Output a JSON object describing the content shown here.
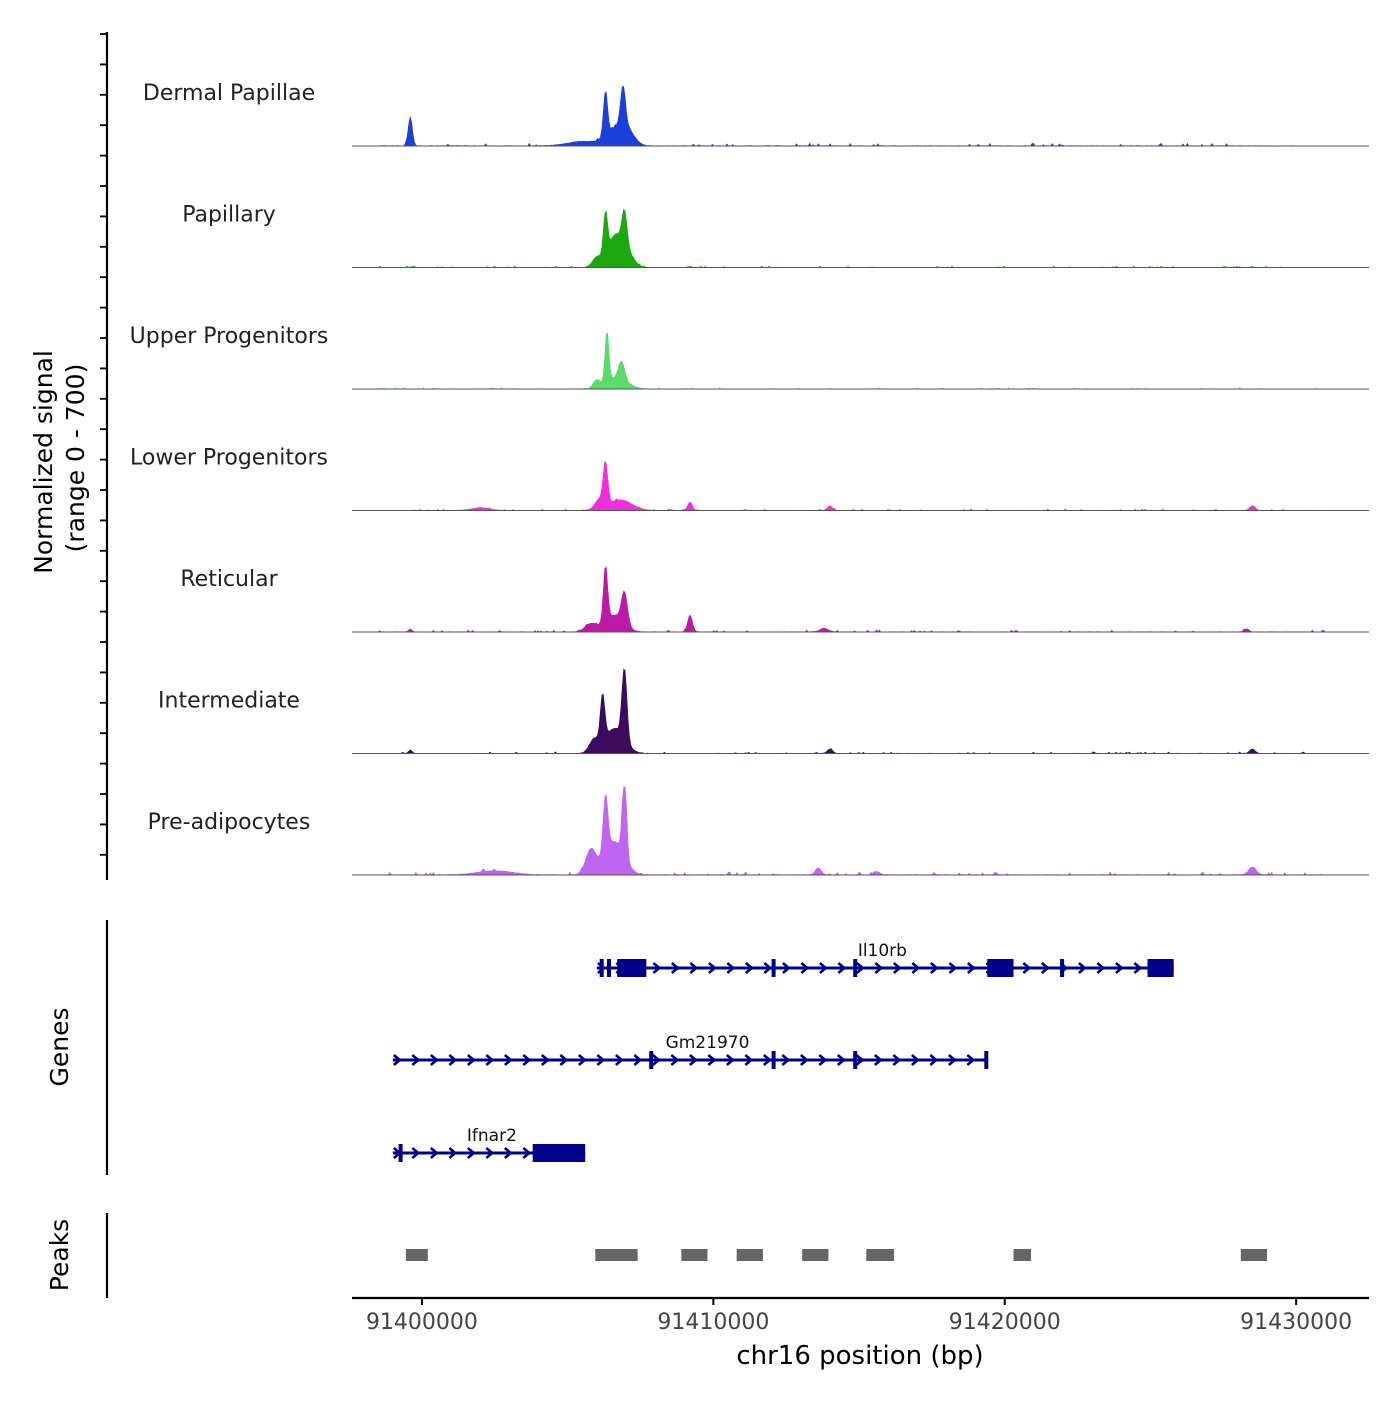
{
  "chart_data": {
    "type": "area",
    "title": "",
    "chromosome": "chr16",
    "xlabel": "chr16 position (bp)",
    "xlim": [
      91397600,
      91432500
    ],
    "xticks": [
      91400000,
      91410000,
      91420000,
      91430000
    ],
    "xtick_labels": [
      "91400000",
      "91410000",
      "91420000",
      "91430000"
    ],
    "coverage": {
      "ylabel_line1": "Normalized signal",
      "ylabel_line2": "(range 0 - 700)",
      "ylim": [
        0,
        700
      ],
      "series": [
        {
          "name": "Dermal Papillae",
          "color": "#1a3fdb",
          "peaks": [
            [
              91399600,
              330,
              70
            ],
            [
              91405500,
              50,
              500
            ],
            [
              91406300,
              520,
              70
            ],
            [
              91406900,
              430,
              80
            ],
            [
              91406650,
              160,
              350
            ],
            [
              91407000,
              150,
              260
            ]
          ],
          "noise": 20,
          "data_range": [
            91398500,
            91430000
          ]
        },
        {
          "name": "Papillary",
          "color": "#1fa70f",
          "peaks": [
            [
              91406000,
              100,
              150
            ],
            [
              91406300,
              500,
              70
            ],
            [
              91406950,
              420,
              90
            ],
            [
              91406600,
              150,
              320
            ],
            [
              91406650,
              220,
              200
            ],
            [
              91407100,
              120,
              200
            ]
          ],
          "noise": 10,
          "data_range": [
            91398500,
            91430800
          ]
        },
        {
          "name": "Upper Progenitors",
          "color": "#5bdb6c",
          "peaks": [
            [
              91406350,
              590,
              65
            ],
            [
              91406000,
              90,
              120
            ],
            [
              91406850,
              200,
              100
            ],
            [
              91406700,
              130,
              350
            ]
          ],
          "noise": 8,
          "data_range": [
            91398500,
            91430800
          ]
        },
        {
          "name": "Lower Progenitors",
          "color": "#f42ddc",
          "peaks": [
            [
              91406300,
              460,
              75
            ],
            [
              91406800,
              120,
              400
            ],
            [
              91406100,
              110,
              160
            ],
            [
              91409200,
              95,
              80
            ],
            [
              91402000,
              30,
              300
            ],
            [
              91414000,
              50,
              90
            ],
            [
              91428500,
              55,
              90
            ]
          ],
          "noise": 12,
          "data_range": [
            91398500,
            91431000
          ]
        },
        {
          "name": "Reticular",
          "color": "#bb1aa6",
          "peaks": [
            [
              91406300,
              640,
              70
            ],
            [
              91406950,
              360,
              100
            ],
            [
              91406600,
              190,
              320
            ],
            [
              91405800,
              90,
              200
            ],
            [
              91409200,
              190,
              80
            ],
            [
              91399600,
              30,
              60
            ],
            [
              91413800,
              40,
              150
            ],
            [
              91428300,
              35,
              80
            ]
          ],
          "noise": 15,
          "data_range": [
            91398500,
            91431000
          ]
        },
        {
          "name": "Intermediate",
          "color": "#3a0b5f",
          "peaks": [
            [
              91406200,
              530,
              75
            ],
            [
              91406950,
              820,
              85
            ],
            [
              91406600,
              280,
              340
            ],
            [
              91405900,
              140,
              160
            ],
            [
              91399600,
              40,
              60
            ],
            [
              91414000,
              50,
              90
            ],
            [
              91428500,
              50,
              90
            ]
          ],
          "noise": 12,
          "data_range": [
            91398500,
            91431000
          ]
        },
        {
          "name": "Pre-adipocytes",
          "color": "#c065ef",
          "peaks": [
            [
              91406300,
              670,
              80
            ],
            [
              91406950,
              1000,
              70
            ],
            [
              91406600,
              380,
              330
            ],
            [
              91405800,
              280,
              180
            ],
            [
              91413600,
              80,
              100
            ],
            [
              91402500,
              45,
              600
            ],
            [
              91428500,
              90,
              130
            ],
            [
              91415600,
              40,
              100
            ]
          ],
          "noise": 22,
          "data_range": [
            91398500,
            91431000
          ]
        }
      ]
    },
    "genes": {
      "ylabel": "Genes",
      "color": "#00008b",
      "tracks": [
        {
          "name": "Il10rb",
          "label_pos": 91415800,
          "start": 91406000,
          "end": 91425800,
          "strand": "+",
          "exons": [
            [
              91406100,
              91406200
            ],
            [
              91406350,
              91406450
            ],
            [
              91406700,
              91407700
            ],
            [
              91412000,
              91412100
            ],
            [
              91414800,
              91414900
            ],
            [
              91419400,
              91420300
            ],
            [
              91421900,
              91422000
            ],
            [
              91424900,
              91425800
            ]
          ]
        },
        {
          "name": "Gm21970",
          "label_pos": 91409800,
          "start": 91399000,
          "end": 91419400,
          "strand": "+",
          "exons": [
            [
              91407800,
              91407900
            ],
            [
              91412000,
              91412100
            ],
            [
              91414800,
              91414900
            ],
            [
              91419300,
              91419400
            ]
          ]
        },
        {
          "name": "Ifnar2",
          "label_pos": 91402400,
          "start": 91399000,
          "end": 91405600,
          "strand": "+",
          "exons": [
            [
              91399200,
              91399300
            ],
            [
              91403800,
              91405600
            ]
          ]
        }
      ]
    },
    "peaks": {
      "ylabel": "Peaks",
      "color": "#666666",
      "regions": [
        [
          91399450,
          91400200
        ],
        [
          91405950,
          91407400
        ],
        [
          91408900,
          91409800
        ],
        [
          91410800,
          91411700
        ],
        [
          91413050,
          91413950
        ],
        [
          91415250,
          91416200
        ],
        [
          91420300,
          91420900
        ],
        [
          91428100,
          91429000
        ]
      ]
    }
  }
}
